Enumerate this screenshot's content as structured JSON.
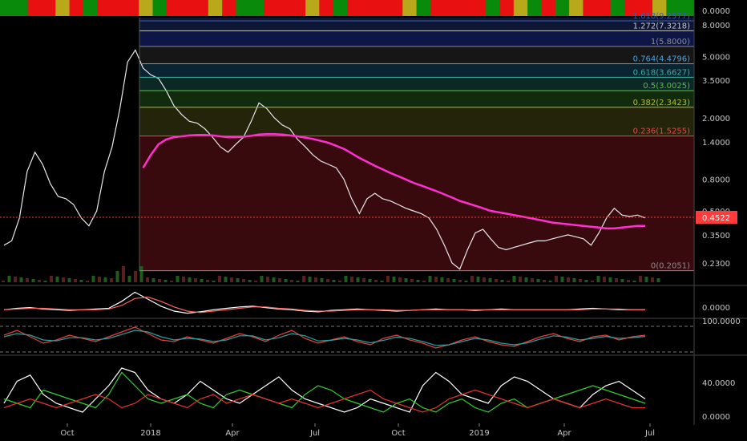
{
  "chart_data": [
    {
      "type": "line",
      "pane": "price",
      "title": "",
      "xlabel": "",
      "ylabel": "",
      "y_scale": "log",
      "ylim": [
        0.2,
        8.0
      ],
      "x_ticks": [
        "Oct",
        "2018",
        "Apr",
        "Jul",
        "Oct",
        "2019",
        "Apr",
        "Jul"
      ],
      "y_ticks": [
        "8.0000",
        "5.0000",
        "3.5000",
        "2.0000",
        "1.4000",
        "0.8000",
        "0.5000",
        "0.3500",
        "0.2300"
      ],
      "last_price": "0.4522",
      "last_price_color": "#ff3b3b",
      "fib_levels": [
        {
          "label": "1.618(9.2577)",
          "value": 9.2577,
          "color": "#3f5fa8"
        },
        {
          "label": "1.272(7.3218)",
          "value": 7.3218,
          "color": "#c8c8c8"
        },
        {
          "label": "1(5.8000)",
          "value": 5.8,
          "color": "#8c8c8c"
        },
        {
          "label": "0.764(4.4796)",
          "value": 4.4796,
          "color": "#4aa3e0"
        },
        {
          "label": "0.618(3.6627)",
          "value": 3.6627,
          "color": "#39b0a0"
        },
        {
          "label": "0.5(3.0025)",
          "value": 3.0025,
          "color": "#5cbf4a"
        },
        {
          "label": "0.382(2.3423)",
          "value": 2.3423,
          "color": "#b8b83a"
        },
        {
          "label": "0.236(1.5255)",
          "value": 1.5255,
          "color": "#e84848"
        },
        {
          "label": "0(0.2051)",
          "value": 0.2051,
          "color": "#8c8c8c"
        }
      ],
      "series": [
        {
          "name": "",
          "color": "#e8e8e8",
          "values": [
            0.3,
            0.32,
            0.45,
            0.9,
            1.2,
            1.0,
            0.75,
            0.62,
            0.6,
            0.55,
            0.45,
            0.4,
            0.5,
            0.9,
            1.3,
            2.3,
            4.6,
            5.5,
            4.2,
            3.8,
            3.6,
            3.0,
            2.4,
            2.1,
            1.9,
            1.85,
            1.7,
            1.5,
            1.3,
            1.2,
            1.35,
            1.5,
            1.9,
            2.5,
            2.3,
            2.0,
            1.8,
            1.7,
            1.45,
            1.3,
            1.15,
            1.05,
            1.0,
            0.95,
            0.8,
            0.6,
            0.48,
            0.6,
            0.65,
            0.6,
            0.58,
            0.55,
            0.52,
            0.5,
            0.48,
            0.45,
            0.38,
            0.3,
            0.23,
            0.21,
            0.28,
            0.36,
            0.38,
            0.33,
            0.29,
            0.28,
            0.29,
            0.3,
            0.31,
            0.32,
            0.32,
            0.33,
            0.34,
            0.35,
            0.34,
            0.33,
            0.3,
            0.36,
            0.45,
            0.52,
            0.47,
            0.46,
            0.47,
            0.45
          ]
        },
        {
          "name": "",
          "color": "#ff2fd2",
          "values": [
            null,
            null,
            null,
            null,
            null,
            null,
            null,
            null,
            null,
            null,
            null,
            null,
            null,
            null,
            null,
            null,
            null,
            null,
            0.95,
            1.15,
            1.35,
            1.45,
            1.5,
            1.52,
            1.54,
            1.55,
            1.55,
            1.54,
            1.52,
            1.5,
            1.5,
            1.51,
            1.53,
            1.56,
            1.57,
            1.57,
            1.56,
            1.54,
            1.52,
            1.49,
            1.46,
            1.42,
            1.38,
            1.32,
            1.26,
            1.18,
            1.1,
            1.04,
            0.98,
            0.93,
            0.88,
            0.84,
            0.8,
            0.76,
            0.73,
            0.7,
            0.67,
            0.64,
            0.61,
            0.58,
            0.56,
            0.54,
            0.52,
            0.5,
            0.49,
            0.48,
            0.47,
            0.46,
            0.45,
            0.44,
            0.43,
            0.42,
            0.415,
            0.41,
            0.405,
            0.4,
            0.395,
            0.39,
            0.385,
            0.385,
            0.39,
            0.395,
            0.4,
            0.4
          ]
        }
      ]
    },
    {
      "type": "line",
      "pane": "oscillator-1",
      "y_ticks": [
        "0.0000"
      ],
      "series": [
        {
          "name": "",
          "color": "#ffffff",
          "values": [
            0,
            0.02,
            0.03,
            0.01,
            0,
            -0.01,
            0,
            0.01,
            0.02,
            0.12,
            0.25,
            0.15,
            0.05,
            -0.02,
            -0.05,
            -0.03,
            0,
            0.02,
            0.04,
            0.05,
            0.03,
            0.01,
            0,
            -0.02,
            -0.03,
            -0.01,
            0,
            0.01,
            0,
            -0.01,
            -0.02,
            -0.01,
            0,
            0.01,
            0,
            0,
            -0.01,
            0,
            0.01,
            0,
            0,
            0,
            0,
            0,
            0.01,
            0.02,
            0.01,
            0,
            0,
            0
          ]
        },
        {
          "name": "",
          "color": "#ff6060",
          "values": [
            0,
            0.01,
            0.02,
            0.02,
            0.01,
            0,
            0,
            0,
            0.01,
            0.06,
            0.16,
            0.18,
            0.12,
            0.04,
            -0.02,
            -0.04,
            -0.02,
            0,
            0.02,
            0.04,
            0.04,
            0.02,
            0.01,
            -0.01,
            -0.02,
            -0.02,
            -0.01,
            0,
            0,
            0,
            -0.01,
            -0.01,
            0,
            0,
            0,
            0,
            0,
            0,
            0,
            0,
            0,
            0,
            0,
            0,
            0,
            0.01,
            0.01,
            0.01,
            0,
            0
          ]
        }
      ]
    },
    {
      "type": "line",
      "pane": "oscillator-2",
      "y_ticks": [
        "100.0000"
      ],
      "series": [
        {
          "name": "",
          "color": "#e84040",
          "values": [
            60,
            75,
            55,
            35,
            45,
            60,
            50,
            40,
            55,
            70,
            85,
            65,
            45,
            40,
            55,
            45,
            35,
            50,
            65,
            55,
            40,
            60,
            75,
            50,
            35,
            45,
            55,
            40,
            30,
            50,
            60,
            45,
            35,
            20,
            30,
            45,
            55,
            40,
            30,
            25,
            40,
            55,
            65,
            50,
            40,
            55,
            60,
            45,
            55,
            60
          ]
        },
        {
          "name": "",
          "color": "#2fa0a0",
          "values": [
            55,
            65,
            60,
            45,
            42,
            52,
            52,
            45,
            50,
            62,
            75,
            70,
            55,
            45,
            50,
            48,
            40,
            45,
            58,
            58,
            45,
            52,
            65,
            58,
            42,
            44,
            50,
            45,
            36,
            44,
            54,
            50,
            40,
            28,
            30,
            40,
            50,
            45,
            35,
            30,
            36,
            48,
            58,
            54,
            45,
            50,
            56,
            50,
            52,
            56
          ]
        }
      ]
    },
    {
      "type": "line",
      "pane": "oscillator-3",
      "y_ticks": [
        "40.0000",
        "0.0000"
      ],
      "series": [
        {
          "name": "",
          "color": "#ffffff",
          "values": [
            20,
            45,
            52,
            30,
            20,
            15,
            10,
            25,
            40,
            60,
            55,
            35,
            25,
            20,
            30,
            45,
            35,
            25,
            20,
            30,
            40,
            50,
            35,
            25,
            20,
            15,
            10,
            15,
            25,
            20,
            15,
            10,
            40,
            55,
            45,
            30,
            25,
            20,
            40,
            50,
            45,
            35,
            25,
            20,
            15,
            30,
            40,
            45,
            35,
            25
          ]
        },
        {
          "name": "",
          "color": "#30d030",
          "values": [
            25,
            20,
            15,
            35,
            30,
            25,
            20,
            15,
            30,
            55,
            40,
            25,
            20,
            25,
            30,
            20,
            15,
            30,
            35,
            30,
            25,
            20,
            15,
            30,
            40,
            35,
            25,
            20,
            15,
            10,
            20,
            25,
            15,
            10,
            20,
            25,
            15,
            10,
            20,
            25,
            15,
            20,
            25,
            30,
            35,
            40,
            35,
            30,
            25,
            20
          ]
        },
        {
          "name": "",
          "color": "#e83030",
          "values": [
            15,
            20,
            25,
            20,
            15,
            20,
            25,
            30,
            25,
            15,
            20,
            30,
            25,
            20,
            15,
            25,
            30,
            20,
            25,
            30,
            25,
            20,
            25,
            20,
            15,
            20,
            25,
            30,
            35,
            25,
            20,
            15,
            10,
            15,
            25,
            30,
            35,
            30,
            25,
            20,
            15,
            20,
            25,
            20,
            15,
            20,
            25,
            20,
            15,
            15
          ]
        }
      ]
    }
  ]
}
